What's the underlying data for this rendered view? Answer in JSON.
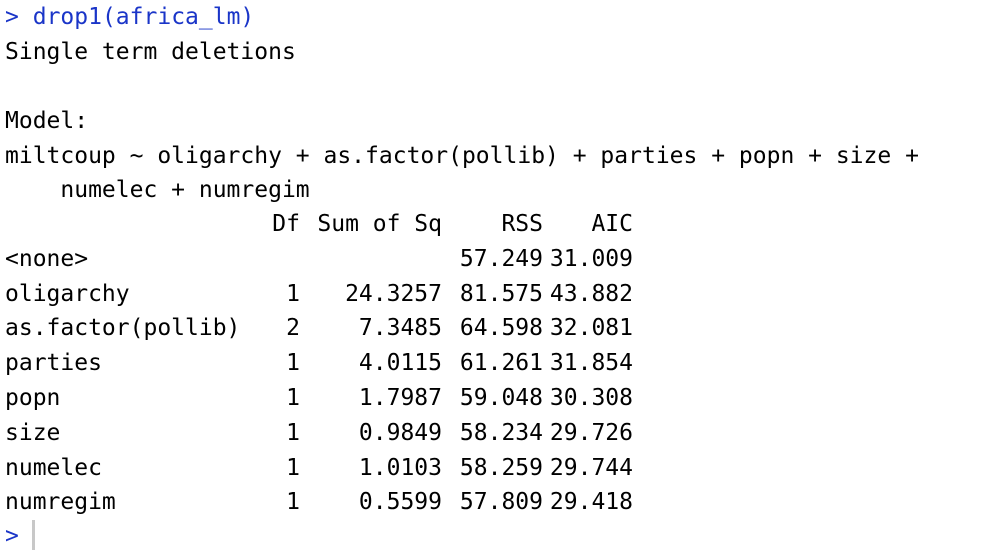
{
  "console": {
    "prompt_symbol": ">",
    "command": "drop1(africa_lm)",
    "heading": "Single term deletions",
    "model_label": "Model:",
    "formula_line1": "miltcoup ~ oligarchy + as.factor(pollib) + parties + popn + size +",
    "formula_line2": "    numelec + numregim",
    "table": {
      "headers": [
        "",
        "Df",
        "Sum of Sq",
        "RSS",
        "AIC"
      ],
      "rows": [
        {
          "term": "<none>",
          "df": "",
          "sumsq": "",
          "rss": "57.249",
          "aic": "31.009"
        },
        {
          "term": "oligarchy",
          "df": "1",
          "sumsq": "24.3257",
          "rss": "81.575",
          "aic": "43.882"
        },
        {
          "term": "as.factor(pollib)",
          "df": "2",
          "sumsq": "7.3485",
          "rss": "64.598",
          "aic": "32.081"
        },
        {
          "term": "parties",
          "df": "1",
          "sumsq": "4.0115",
          "rss": "61.261",
          "aic": "31.854"
        },
        {
          "term": "popn",
          "df": "1",
          "sumsq": "1.7987",
          "rss": "59.048",
          "aic": "30.308"
        },
        {
          "term": "size",
          "df": "1",
          "sumsq": "0.9849",
          "rss": "58.234",
          "aic": "29.726"
        },
        {
          "term": "numelec",
          "df": "1",
          "sumsq": "1.0103",
          "rss": "58.259",
          "aic": "29.744"
        },
        {
          "term": "numregim",
          "df": "1",
          "sumsq": "0.5599",
          "rss": "57.809",
          "aic": "29.418"
        }
      ]
    },
    "input_prompt_symbol": ">"
  },
  "colors": {
    "prompt": "#1a35c8",
    "text": "#000000",
    "cursor": "#c8c8c8"
  }
}
